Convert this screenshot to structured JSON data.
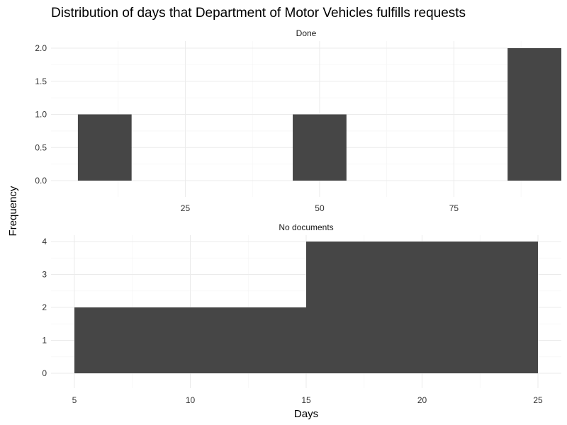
{
  "chart_data": {
    "type": "bar",
    "title": "Distribution of days that Department of Motor Vehicles fulfills requests",
    "xlabel": "Days",
    "ylabel": "Frequency",
    "grid": true,
    "bar_color": "#464646",
    "facets": [
      {
        "name": "Done",
        "xlim": [
          0,
          95
        ],
        "ylim": [
          0,
          2
        ],
        "x_ticks": [
          25,
          50,
          75
        ],
        "y_ticks": [
          0,
          0.5,
          1,
          1.5,
          2
        ],
        "y_tick_labels": [
          "0.0",
          "0.5",
          "1.0",
          "1.5",
          "2.0"
        ],
        "bins": [
          {
            "x0": 5,
            "x1": 15,
            "count": 1
          },
          {
            "x0": 15,
            "x1": 25,
            "count": 0
          },
          {
            "x0": 25,
            "x1": 35,
            "count": 0
          },
          {
            "x0": 35,
            "x1": 45,
            "count": 0
          },
          {
            "x0": 45,
            "x1": 55,
            "count": 1
          },
          {
            "x0": 55,
            "x1": 65,
            "count": 0
          },
          {
            "x0": 65,
            "x1": 75,
            "count": 0
          },
          {
            "x0": 75,
            "x1": 85,
            "count": 0
          },
          {
            "x0": 85,
            "x1": 95,
            "count": 2
          }
        ]
      },
      {
        "name": "No documents",
        "xlim": [
          5,
          25
        ],
        "ylim": [
          0,
          4
        ],
        "x_ticks": [
          5,
          10,
          15,
          20,
          25
        ],
        "y_ticks": [
          0,
          1,
          2,
          3,
          4
        ],
        "y_tick_labels": [
          "0",
          "1",
          "2",
          "3",
          "4"
        ],
        "bins": [
          {
            "x0": 5,
            "x1": 15,
            "count": 2
          },
          {
            "x0": 15,
            "x1": 25,
            "count": 4
          }
        ]
      }
    ]
  }
}
